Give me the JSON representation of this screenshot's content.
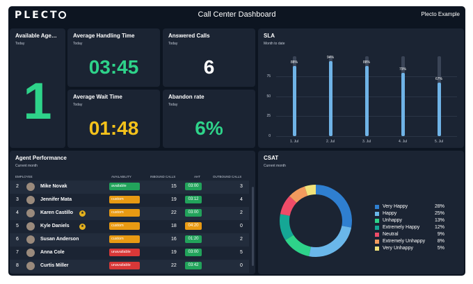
{
  "topbar": {
    "logo": "PLECT",
    "title": "Call Center Dashboard",
    "account": "Plecto Example"
  },
  "available_agents": {
    "title": "Available Age…",
    "subtitle": "Today",
    "value": "1",
    "color": "#2ed38a"
  },
  "aht": {
    "title": "Average Handling Time",
    "subtitle": "Today",
    "value": "03:45",
    "color": "#2ed38a"
  },
  "answered": {
    "title": "Answered Calls",
    "subtitle": "Today",
    "value": "6",
    "color": "#ffffff"
  },
  "wait": {
    "title": "Average Wait Time",
    "subtitle": "Today",
    "value": "01:48",
    "color": "#f4c21b"
  },
  "abandon": {
    "title": "Abandon rate",
    "subtitle": "Today",
    "value": "6%",
    "color": "#2ed38a"
  },
  "sla": {
    "title": "SLA",
    "subtitle": "Month to date",
    "y_ticks": [
      "75",
      "50",
      "25",
      "0"
    ],
    "bar_color": "#6fb3e6"
  },
  "chart_data": {
    "type": "bar",
    "title": "SLA",
    "categories": [
      "1. Jul",
      "2. Jul",
      "3. Jul",
      "4. Jul",
      "5. Jul"
    ],
    "values": [
      88,
      94,
      88,
      79,
      67
    ],
    "labels": [
      "88%",
      "94%",
      "88%",
      "79%",
      "67%"
    ],
    "ylim": [
      0,
      100
    ],
    "y_ticks": [
      0,
      25,
      50,
      75
    ],
    "grid": true
  },
  "agent_performance": {
    "title": "Agent Performance",
    "subtitle": "Current month",
    "columns": [
      "EMPLOYEE",
      "AVAILABILITY",
      "INBOUND CALLS",
      "AHT",
      "OUTBOUND CALLS"
    ],
    "rows": [
      {
        "rank": "2",
        "name": "Mike Novak",
        "status": "available",
        "status_color": "#22a35b",
        "inbound": "15",
        "aht": "03:00",
        "aht_color": "#22a35b",
        "outbound": "3",
        "medal": ""
      },
      {
        "rank": "3",
        "name": "Jennifer Mata",
        "status": "custom",
        "status_color": "#e89a13",
        "inbound": "19",
        "aht": "03:12",
        "aht_color": "#22a35b",
        "outbound": "4",
        "medal": ""
      },
      {
        "rank": "4",
        "name": "Karen Castillo",
        "status": "custom",
        "status_color": "#e89a13",
        "inbound": "22",
        "aht": "03:00",
        "aht_color": "#22a35b",
        "outbound": "2",
        "medal": "★"
      },
      {
        "rank": "5",
        "name": "Kyle Daniels",
        "status": "custom",
        "status_color": "#e89a13",
        "inbound": "18",
        "aht": "04:20",
        "aht_color": "#e89a13",
        "outbound": "0",
        "medal": "★"
      },
      {
        "rank": "6",
        "name": "Susan Anderson",
        "status": "custom",
        "status_color": "#e89a13",
        "inbound": "16",
        "aht": "01:20",
        "aht_color": "#22a35b",
        "outbound": "2",
        "medal": ""
      },
      {
        "rank": "7",
        "name": "Anna Cole",
        "status": "unavailable",
        "status_color": "#d93838",
        "inbound": "19",
        "aht": "03:00",
        "aht_color": "#22a35b",
        "outbound": "5",
        "medal": ""
      },
      {
        "rank": "8",
        "name": "Curtis Miller",
        "status": "unavailable",
        "status_color": "#d93838",
        "inbound": "22",
        "aht": "03:42",
        "aht_color": "#22a35b",
        "outbound": "0",
        "medal": ""
      }
    ]
  },
  "csat": {
    "title": "CSAT",
    "subtitle": "Current month",
    "segments": [
      {
        "name": "Very Happy",
        "value": 28,
        "pct": "28%",
        "color": "#2f7fd0"
      },
      {
        "name": "Happy",
        "value": 25,
        "pct": "25%",
        "color": "#6ab7ea"
      },
      {
        "name": "Unhappy",
        "value": 13,
        "pct": "13%",
        "color": "#2ed38a"
      },
      {
        "name": "Extremely Happy",
        "value": 12,
        "pct": "12%",
        "color": "#15a795"
      },
      {
        "name": "Neutral",
        "value": 9,
        "pct": "9%",
        "color": "#ef4c68"
      },
      {
        "name": "Extremely Unhappy",
        "value": 8,
        "pct": "8%",
        "color": "#f29b5e"
      },
      {
        "name": "Very Unhappy",
        "value": 5,
        "pct": "5%",
        "color": "#f1e27a"
      }
    ]
  }
}
